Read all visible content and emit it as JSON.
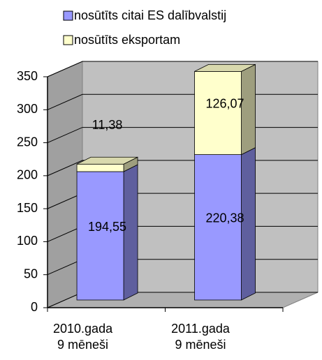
{
  "chart_data": {
    "type": "bar3d_stacked",
    "categories": [
      [
        "2010.gada",
        "9 mēneši"
      ],
      [
        "2011.gada",
        "9 mēneši"
      ]
    ],
    "series": [
      {
        "name": "nosūtīts citai ES dalībvalstij",
        "color": "#9999ff",
        "values": [
          194.55,
          220.38
        ],
        "value_labels": [
          "194,55",
          "220,38"
        ]
      },
      {
        "name": "nosūtīts eksportam",
        "color": "#ffffcc",
        "values": [
          11.38,
          126.07
        ],
        "value_labels": [
          "11,38",
          "126,07"
        ]
      }
    ],
    "ylim": [
      0,
      350
    ],
    "yticks": [
      0,
      50,
      100,
      150,
      200,
      250,
      300,
      350
    ],
    "grid": true,
    "legend": "top"
  }
}
